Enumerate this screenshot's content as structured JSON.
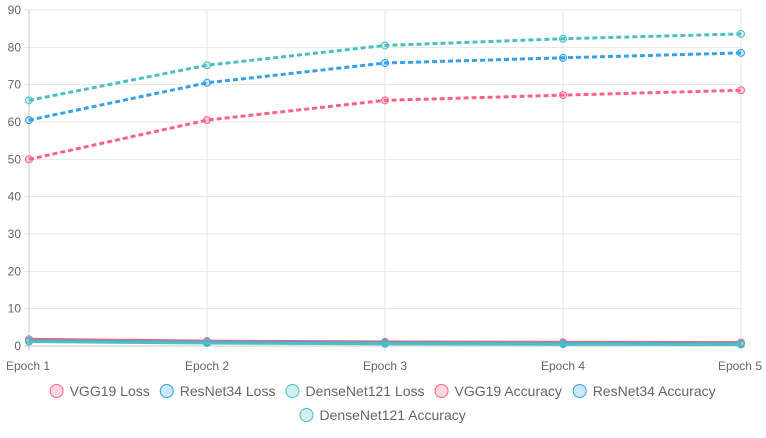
{
  "chart_data": {
    "type": "line",
    "title": "",
    "xlabel": "",
    "ylabel": "",
    "categories": [
      "Epoch 1",
      "Epoch 2",
      "Epoch 3",
      "Epoch 4",
      "Epoch 5"
    ],
    "ylim": [
      0,
      90
    ],
    "yticks": [
      0,
      10,
      20,
      30,
      40,
      50,
      60,
      70,
      80,
      90
    ],
    "grid": true,
    "legend_position": "bottom",
    "series": [
      {
        "name": "VGG19 Loss",
        "values": [
          1.8,
          1.3,
          1.1,
          1.0,
          0.9
        ],
        "color": "#ff6384",
        "dashed": false
      },
      {
        "name": "ResNet34 Loss",
        "values": [
          1.4,
          1.0,
          0.8,
          0.7,
          0.6
        ],
        "color": "#36a2eb",
        "dashed": false
      },
      {
        "name": "DenseNet121 Loss",
        "values": [
          1.2,
          0.8,
          0.6,
          0.5,
          0.4
        ],
        "color": "#4bc0c0",
        "dashed": false
      },
      {
        "name": "VGG19 Accuracy",
        "values": [
          50,
          60.5,
          65.8,
          67.2,
          68.5
        ],
        "color": "#ff6384",
        "dashed": true
      },
      {
        "name": "ResNet34 Accuracy",
        "values": [
          60.5,
          70.5,
          75.8,
          77.2,
          78.5
        ],
        "color": "#36a2eb",
        "dashed": true
      },
      {
        "name": "DenseNet121 Accuracy",
        "values": [
          65.8,
          75.2,
          80.5,
          82.3,
          83.6
        ],
        "color": "#4bc0c0",
        "dashed": true
      }
    ]
  }
}
